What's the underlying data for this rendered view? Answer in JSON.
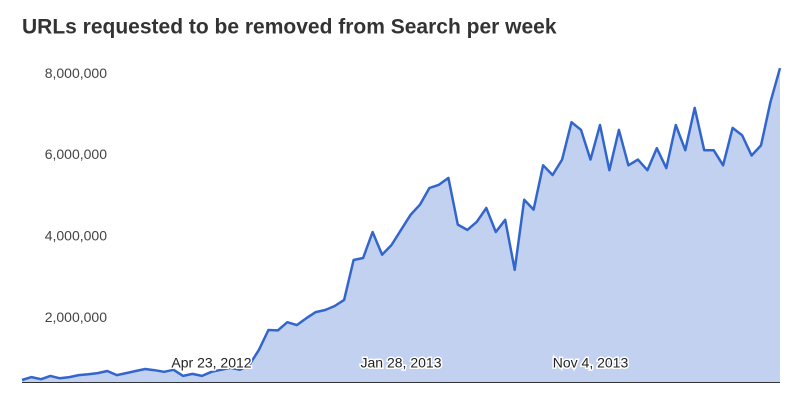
{
  "chart_data": {
    "type": "area",
    "title": "URLs requested to be removed from Search per week",
    "categories": [
      null,
      null,
      null,
      null,
      null,
      null,
      null,
      null,
      null,
      null,
      null,
      null,
      null,
      null,
      null,
      null,
      null,
      null,
      null,
      null,
      "Apr 23, 2012",
      null,
      null,
      null,
      null,
      null,
      null,
      null,
      null,
      null,
      null,
      null,
      null,
      null,
      null,
      null,
      null,
      null,
      null,
      null,
      "Jan 28, 2013",
      null,
      null,
      null,
      null,
      null,
      null,
      null,
      null,
      null,
      null,
      null,
      null,
      null,
      null,
      null,
      null,
      null,
      null,
      null,
      "Nov 4, 2013",
      null,
      null,
      null,
      null,
      null,
      null,
      null,
      null,
      null,
      null,
      null,
      null,
      null,
      null,
      null,
      null,
      null,
      null,
      null,
      null
    ],
    "values": [
      480000,
      550000,
      500000,
      580000,
      520000,
      550000,
      600000,
      620000,
      650000,
      700000,
      600000,
      650000,
      700000,
      750000,
      720000,
      680000,
      730000,
      580000,
      630000,
      580000,
      680000,
      730000,
      780000,
      730000,
      850000,
      1220000,
      1710000,
      1700000,
      1900000,
      1830000,
      2000000,
      2150000,
      2200000,
      2300000,
      2450000,
      3430000,
      3480000,
      4120000,
      3560000,
      3800000,
      4170000,
      4540000,
      4790000,
      5200000,
      5280000,
      5450000,
      4300000,
      4170000,
      4370000,
      4710000,
      4120000,
      4420000,
      3190000,
      4910000,
      4670000,
      5760000,
      5520000,
      5900000,
      6820000,
      6630000,
      5900000,
      6750000,
      5640000,
      6630000,
      5760000,
      5900000,
      5640000,
      6180000,
      5690000,
      6750000,
      6130000,
      7170000,
      6130000,
      6130000,
      5760000,
      6680000,
      6500000,
      6000000,
      6250000,
      7320000,
      8150000
    ],
    "color": "#3366cc",
    "fill_color": "#c2d1f0",
    "ylim": [
      430000,
      8300000
    ],
    "yticks": [
      {
        "value": 2000000,
        "label": "2,000,000"
      },
      {
        "value": 4000000,
        "label": "4,000,000"
      },
      {
        "value": 6000000,
        "label": "6,000,000"
      },
      {
        "value": 8000000,
        "label": "8,000,000"
      }
    ]
  }
}
